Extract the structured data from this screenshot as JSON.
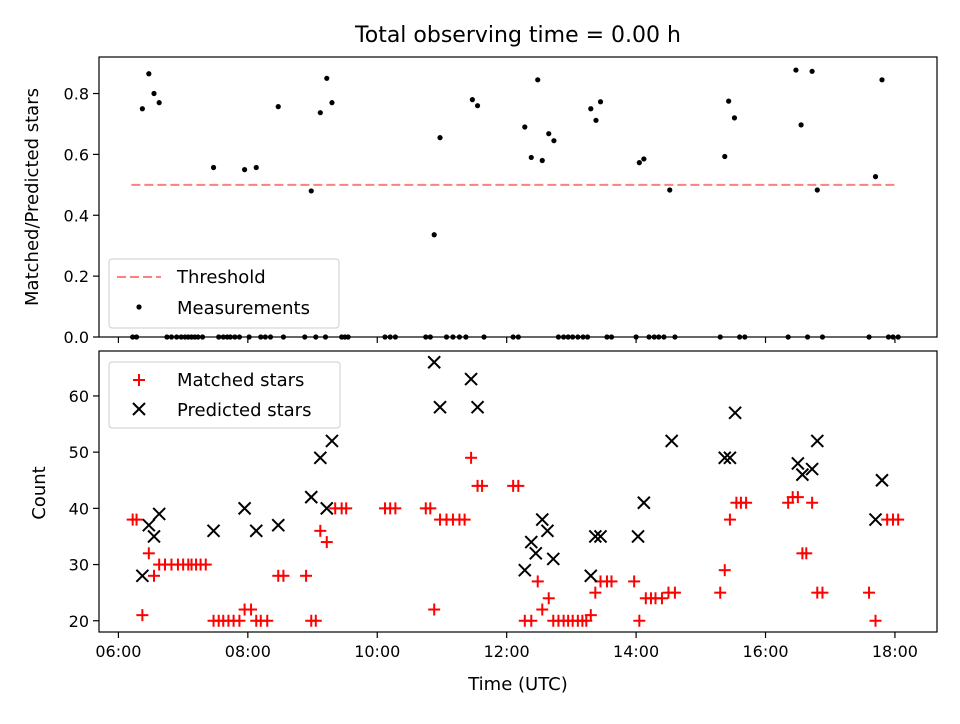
{
  "title": "Total observing time = 0.00 h",
  "chart_data": [
    {
      "type": "scatter",
      "ylabel": "Matched/Predicted stars",
      "ylim": [
        0,
        0.92
      ],
      "xlim": [
        5.7,
        18.65
      ],
      "yticks": [
        {
          "value": 0.0,
          "label": "0.0"
        },
        {
          "value": 0.2,
          "label": "0.2"
        },
        {
          "value": 0.4,
          "label": "0.4"
        },
        {
          "value": 0.6,
          "label": "0.6"
        },
        {
          "value": 0.8,
          "label": "0.8"
        }
      ],
      "legend": [
        "Threshold",
        "Measurements"
      ],
      "legend_location": "lower-left",
      "threshold": {
        "name": "Threshold",
        "value": 0.5,
        "x_range": [
          6.2,
          18.0
        ],
        "color": "#ff7f7f"
      },
      "measurements": {
        "name": "Measurements",
        "color": "#000000",
        "points": [
          [
            6.22,
            0.0
          ],
          [
            6.28,
            0.0
          ],
          [
            6.37,
            0.75
          ],
          [
            6.47,
            0.865
          ],
          [
            6.55,
            0.8
          ],
          [
            6.63,
            0.77
          ],
          [
            6.75,
            0.0
          ],
          [
            6.82,
            0.0
          ],
          [
            6.9,
            0.0
          ],
          [
            6.97,
            0.0
          ],
          [
            7.03,
            0.0
          ],
          [
            7.08,
            0.0
          ],
          [
            7.13,
            0.0
          ],
          [
            7.18,
            0.0
          ],
          [
            7.23,
            0.0
          ],
          [
            7.3,
            0.0
          ],
          [
            7.47,
            0.557
          ],
          [
            7.55,
            0.0
          ],
          [
            7.62,
            0.0
          ],
          [
            7.68,
            0.0
          ],
          [
            7.73,
            0.0
          ],
          [
            7.8,
            0.0
          ],
          [
            7.87,
            0.0
          ],
          [
            7.95,
            0.55
          ],
          [
            8.02,
            0.0
          ],
          [
            8.13,
            0.557
          ],
          [
            8.2,
            0.0
          ],
          [
            8.27,
            0.0
          ],
          [
            8.35,
            0.0
          ],
          [
            8.47,
            0.757
          ],
          [
            8.55,
            0.0
          ],
          [
            8.88,
            0.0
          ],
          [
            8.98,
            0.48
          ],
          [
            9.05,
            0.0
          ],
          [
            9.12,
            0.737
          ],
          [
            9.2,
            0.0
          ],
          [
            9.22,
            0.85
          ],
          [
            9.3,
            0.77
          ],
          [
            9.45,
            0.0
          ],
          [
            9.5,
            0.0
          ],
          [
            9.55,
            0.0
          ],
          [
            10.12,
            0.0
          ],
          [
            10.2,
            0.0
          ],
          [
            10.28,
            0.0
          ],
          [
            10.75,
            0.0
          ],
          [
            10.82,
            0.0
          ],
          [
            10.88,
            0.336
          ],
          [
            10.97,
            0.655
          ],
          [
            11.07,
            0.0
          ],
          [
            11.17,
            0.0
          ],
          [
            11.27,
            0.0
          ],
          [
            11.37,
            0.0
          ],
          [
            11.47,
            0.78
          ],
          [
            11.55,
            0.76
          ],
          [
            11.65,
            0.0
          ],
          [
            12.1,
            0.0
          ],
          [
            12.18,
            0.0
          ],
          [
            12.28,
            0.69
          ],
          [
            12.38,
            0.59
          ],
          [
            12.48,
            0.845
          ],
          [
            12.55,
            0.58
          ],
          [
            12.65,
            0.668
          ],
          [
            12.73,
            0.645
          ],
          [
            12.8,
            0.0
          ],
          [
            12.88,
            0.0
          ],
          [
            12.95,
            0.0
          ],
          [
            13.02,
            0.0
          ],
          [
            13.1,
            0.0
          ],
          [
            13.18,
            0.0
          ],
          [
            13.25,
            0.0
          ],
          [
            13.3,
            0.75
          ],
          [
            13.38,
            0.712
          ],
          [
            13.45,
            0.773
          ],
          [
            13.55,
            0.0
          ],
          [
            13.62,
            0.0
          ],
          [
            14.0,
            0.0
          ],
          [
            14.05,
            0.573
          ],
          [
            14.12,
            0.585
          ],
          [
            14.2,
            0.0
          ],
          [
            14.28,
            0.0
          ],
          [
            14.35,
            0.0
          ],
          [
            14.43,
            0.0
          ],
          [
            14.52,
            0.483
          ],
          [
            14.6,
            0.0
          ],
          [
            15.3,
            0.0
          ],
          [
            15.37,
            0.593
          ],
          [
            15.43,
            0.775
          ],
          [
            15.52,
            0.72
          ],
          [
            15.6,
            0.0
          ],
          [
            15.68,
            0.0
          ],
          [
            16.35,
            0.0
          ],
          [
            16.47,
            0.877
          ],
          [
            16.55,
            0.697
          ],
          [
            16.65,
            0.0
          ],
          [
            16.72,
            0.873
          ],
          [
            16.8,
            0.483
          ],
          [
            16.88,
            0.0
          ],
          [
            17.6,
            0.0
          ],
          [
            17.7,
            0.527
          ],
          [
            17.8,
            0.845
          ],
          [
            17.9,
            0.0
          ],
          [
            17.97,
            0.0
          ],
          [
            18.05,
            0.0
          ]
        ]
      }
    },
    {
      "type": "scatter",
      "xlabel": "Time (UTC)",
      "ylabel": "Count",
      "ylim": [
        18,
        68
      ],
      "xlim": [
        5.7,
        18.65
      ],
      "yticks": [
        {
          "value": 20,
          "label": "20"
        },
        {
          "value": 30,
          "label": "30"
        },
        {
          "value": 40,
          "label": "40"
        },
        {
          "value": 50,
          "label": "50"
        },
        {
          "value": 60,
          "label": "60"
        }
      ],
      "xticks": [
        {
          "value": 6,
          "label": "06:00"
        },
        {
          "value": 8,
          "label": "08:00"
        },
        {
          "value": 10,
          "label": "10:00"
        },
        {
          "value": 12,
          "label": "12:00"
        },
        {
          "value": 14,
          "label": "14:00"
        },
        {
          "value": 16,
          "label": "16:00"
        },
        {
          "value": 18,
          "label": "18:00"
        }
      ],
      "legend": [
        "Matched stars",
        "Predicted stars"
      ],
      "legend_location": "upper-left",
      "series": [
        {
          "name": "Matched stars",
          "marker": "+",
          "color": "#ff0000",
          "points": [
            [
              6.22,
              38
            ],
            [
              6.28,
              38
            ],
            [
              6.37,
              21
            ],
            [
              6.47,
              32
            ],
            [
              6.55,
              28
            ],
            [
              6.63,
              30
            ],
            [
              6.72,
              30
            ],
            [
              6.82,
              30
            ],
            [
              6.92,
              30
            ],
            [
              7.0,
              30
            ],
            [
              7.08,
              30
            ],
            [
              7.13,
              30
            ],
            [
              7.2,
              30
            ],
            [
              7.27,
              30
            ],
            [
              7.35,
              30
            ],
            [
              7.47,
              20
            ],
            [
              7.55,
              20
            ],
            [
              7.62,
              20
            ],
            [
              7.7,
              20
            ],
            [
              7.78,
              20
            ],
            [
              7.87,
              20
            ],
            [
              7.95,
              22
            ],
            [
              8.05,
              22
            ],
            [
              8.13,
              20
            ],
            [
              8.2,
              20
            ],
            [
              8.3,
              20
            ],
            [
              8.47,
              28
            ],
            [
              8.55,
              28
            ],
            [
              8.9,
              28
            ],
            [
              8.98,
              20
            ],
            [
              9.05,
              20
            ],
            [
              9.12,
              36
            ],
            [
              9.22,
              34
            ],
            [
              9.35,
              40
            ],
            [
              9.45,
              40
            ],
            [
              9.52,
              40
            ],
            [
              10.12,
              40
            ],
            [
              10.2,
              40
            ],
            [
              10.28,
              40
            ],
            [
              10.75,
              40
            ],
            [
              10.82,
              40
            ],
            [
              10.88,
              22
            ],
            [
              10.97,
              38
            ],
            [
              11.07,
              38
            ],
            [
              11.17,
              38
            ],
            [
              11.27,
              38
            ],
            [
              11.35,
              38
            ],
            [
              11.45,
              49
            ],
            [
              11.55,
              44
            ],
            [
              11.62,
              44
            ],
            [
              12.1,
              44
            ],
            [
              12.18,
              44
            ],
            [
              12.28,
              20
            ],
            [
              12.38,
              20
            ],
            [
              12.48,
              27
            ],
            [
              12.55,
              22
            ],
            [
              12.65,
              24
            ],
            [
              12.72,
              20
            ],
            [
              12.8,
              20
            ],
            [
              12.88,
              20
            ],
            [
              12.95,
              20
            ],
            [
              13.02,
              20
            ],
            [
              13.1,
              20
            ],
            [
              13.17,
              20
            ],
            [
              13.23,
              20
            ],
            [
              13.3,
              21
            ],
            [
              13.37,
              25
            ],
            [
              13.45,
              27
            ],
            [
              13.55,
              27
            ],
            [
              13.62,
              27
            ],
            [
              13.97,
              27
            ],
            [
              14.05,
              20
            ],
            [
              14.15,
              24
            ],
            [
              14.23,
              24
            ],
            [
              14.3,
              24
            ],
            [
              14.4,
              24
            ],
            [
              14.5,
              25
            ],
            [
              14.6,
              25
            ],
            [
              15.3,
              25
            ],
            [
              15.37,
              29
            ],
            [
              15.45,
              38
            ],
            [
              15.55,
              41
            ],
            [
              15.62,
              41
            ],
            [
              15.7,
              41
            ],
            [
              16.35,
              41
            ],
            [
              16.42,
              42
            ],
            [
              16.5,
              42
            ],
            [
              16.57,
              32
            ],
            [
              16.63,
              32
            ],
            [
              16.72,
              41
            ],
            [
              16.8,
              25
            ],
            [
              16.88,
              25
            ],
            [
              17.6,
              25
            ],
            [
              17.7,
              20
            ],
            [
              17.88,
              38
            ],
            [
              17.97,
              38
            ],
            [
              18.05,
              38
            ]
          ]
        },
        {
          "name": "Predicted stars",
          "marker": "x",
          "color": "#000000",
          "points": [
            [
              6.37,
              28
            ],
            [
              6.47,
              37
            ],
            [
              6.55,
              35
            ],
            [
              6.63,
              39
            ],
            [
              7.47,
              36
            ],
            [
              7.95,
              40
            ],
            [
              8.13,
              36
            ],
            [
              8.47,
              37
            ],
            [
              8.98,
              42
            ],
            [
              9.12,
              49
            ],
            [
              9.22,
              40
            ],
            [
              9.3,
              52
            ],
            [
              10.88,
              66
            ],
            [
              10.97,
              58
            ],
            [
              11.45,
              63
            ],
            [
              11.55,
              58
            ],
            [
              12.28,
              29
            ],
            [
              12.38,
              34
            ],
            [
              12.45,
              32
            ],
            [
              12.55,
              38
            ],
            [
              12.63,
              36
            ],
            [
              12.72,
              31
            ],
            [
              13.3,
              28
            ],
            [
              13.37,
              35
            ],
            [
              13.45,
              35
            ],
            [
              14.03,
              35
            ],
            [
              14.12,
              41
            ],
            [
              14.55,
              52
            ],
            [
              15.37,
              49
            ],
            [
              15.45,
              49
            ],
            [
              15.53,
              57
            ],
            [
              16.5,
              48
            ],
            [
              16.57,
              46
            ],
            [
              16.72,
              47
            ],
            [
              16.8,
              52
            ],
            [
              17.7,
              38
            ],
            [
              17.8,
              45
            ]
          ]
        }
      ]
    }
  ]
}
